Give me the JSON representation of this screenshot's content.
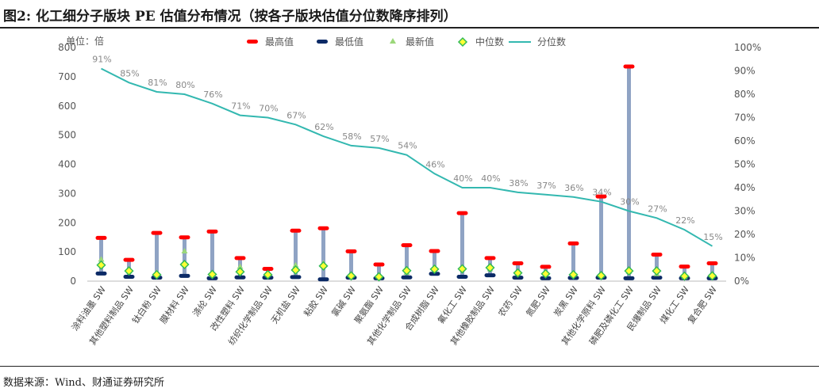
{
  "header": {
    "title": "图2: 化工细分子版块 PE 估值分布情况（按各子版块估值分位数降序排列）"
  },
  "footer": {
    "source": "数据来源：Wind、财通证券研究所"
  },
  "colors": {
    "max_marker": "#ff0000",
    "min_marker": "#0b2a66",
    "latest_marker": "#9bd77a",
    "median_fill": "#ffff33",
    "median_stroke": "#33bb55",
    "percentile_line": "#33b8b0",
    "range_bar": "#8fa3c4"
  },
  "chart_data": {
    "type": "bar",
    "unit_label": "单位：倍",
    "ylim": [
      0,
      800
    ],
    "yticks": [
      0,
      100,
      200,
      300,
      400,
      500,
      600,
      700,
      800
    ],
    "y2lim": [
      0,
      1
    ],
    "y2ticks": [
      "0%",
      "10%",
      "20%",
      "30%",
      "40%",
      "50%",
      "60%",
      "70%",
      "80%",
      "90%",
      "100%"
    ],
    "legend": {
      "position": "top",
      "items": [
        "最高值",
        "最低值",
        "最新值",
        "中位数",
        "分位数"
      ]
    },
    "categories": [
      "涂料油墨 SW",
      "其他塑料制品 SW",
      "钛白粉 SW",
      "膜材料 SW",
      "涤纶 SW",
      "改性塑料 SW",
      "纺织化学制品 SW",
      "无机盐 SW",
      "粘胶 SW",
      "氯碱 SW",
      "聚氨酯 SW",
      "其他化学制品 SW",
      "合成树脂 SW",
      "氟化工 SW",
      "其他橡胶制品 SW",
      "农药 SW",
      "氮肥 SW",
      "炭黑 SW",
      "其他化学原料 SW",
      "磷肥及磷化工 SW",
      "民爆制品 SW",
      "煤化工 SW",
      "复合肥 SW"
    ],
    "series": [
      {
        "name": "最高值",
        "values": [
          148,
          73,
          165,
          150,
          170,
          79,
          42,
          173,
          181,
          102,
          57,
          123,
          103,
          233,
          79,
          61,
          49,
          129,
          290,
          735,
          91,
          50,
          61
        ]
      },
      {
        "name": "最低值",
        "values": [
          26,
          15,
          12,
          18,
          10,
          13,
          12,
          14,
          6,
          12,
          10,
          13,
          25,
          15,
          20,
          12,
          10,
          11,
          12,
          10,
          12,
          10,
          10
        ]
      },
      {
        "name": "最新值",
        "values": [
          75,
          34,
          30,
          103,
          22,
          50,
          25,
          55,
          62,
          20,
          16,
          30,
          48,
          45,
          42,
          27,
          28,
          22,
          20,
          33,
          25,
          15,
          25
        ]
      },
      {
        "name": "中位数",
        "values": [
          55,
          35,
          22,
          57,
          23,
          32,
          22,
          38,
          52,
          18,
          15,
          36,
          41,
          42,
          46,
          28,
          25,
          22,
          19,
          35,
          35,
          17,
          18
        ]
      },
      {
        "name": "分位数",
        "values": [
          0.91,
          0.85,
          0.81,
          0.8,
          0.76,
          0.71,
          0.7,
          0.67,
          0.62,
          0.58,
          0.57,
          0.54,
          0.46,
          0.4,
          0.4,
          0.38,
          0.37,
          0.36,
          0.34,
          0.3,
          0.27,
          0.22,
          0.15
        ]
      }
    ],
    "percentile_labels": [
      "91%",
      "85%",
      "81%",
      "80%",
      "76%",
      "71%",
      "70%",
      "67%",
      "62%",
      "58%",
      "57%",
      "54%",
      "46%",
      "40%",
      "40%",
      "38%",
      "37%",
      "36%",
      "34%",
      "30%",
      "27%",
      "22%",
      "15%"
    ],
    "grid": false
  }
}
